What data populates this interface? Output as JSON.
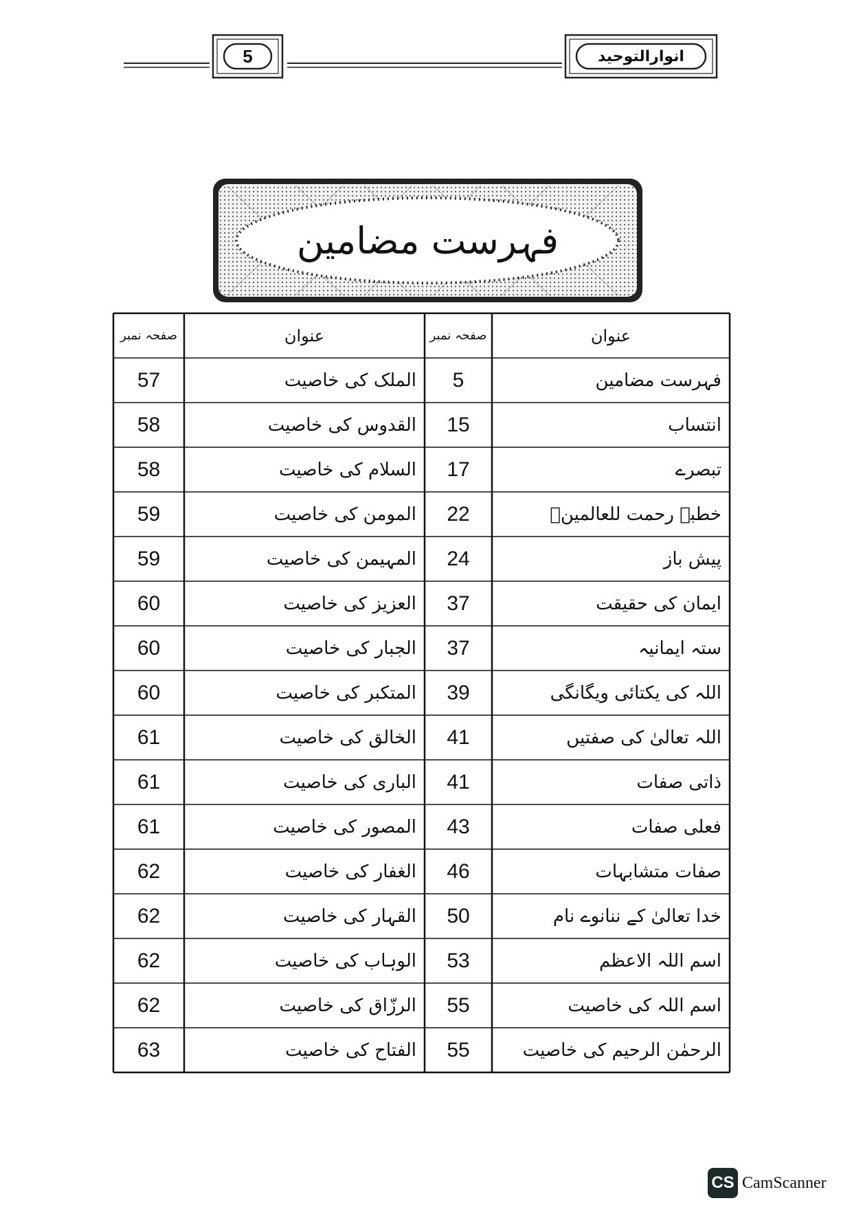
{
  "header": {
    "page_number": "5",
    "book_title": "انوارالتوحید"
  },
  "banner": {
    "title": "فہرست مضامین"
  },
  "table": {
    "header": [
      "عنوان",
      "صفحہ نمبر",
      "عنوان",
      "صفحہ نمبر"
    ],
    "rows": [
      [
        "فہرست مضامین",
        "5",
        "الملک کی خاصیت",
        "57"
      ],
      [
        "انتساب",
        "15",
        "القدوس کی خاصیت",
        "58"
      ],
      [
        "تبصرے",
        "17",
        "السلام کی خاصیت",
        "58"
      ],
      [
        "خطبہ رحمت للعالمینؐ",
        "22",
        "المومن کی خاصیت",
        "59"
      ],
      [
        "پیش باز",
        "24",
        "المہیمن کی خاصیت",
        "59"
      ],
      [
        "ایمان کی حقیقت",
        "37",
        "العزیز کی خاصیت",
        "60"
      ],
      [
        "ستہ ایمانیہ",
        "37",
        "الجبار کی خاصیت",
        "60"
      ],
      [
        "اللہ کی یکتائی ویگانگی",
        "39",
        "المتکبر کی خاصیت",
        "60"
      ],
      [
        "اللہ تعالیٰ کی صفتیں",
        "41",
        "الخالق کی خاصیت",
        "61"
      ],
      [
        "ذاتی صفات",
        "41",
        "الباری کی خاصیت",
        "61"
      ],
      [
        "فعلی صفات",
        "43",
        "المصور کی خاصیت",
        "61"
      ],
      [
        "صفات متشابہات",
        "46",
        "الغفار کی خاصیت",
        "62"
      ],
      [
        "خدا تعالیٰ کے ننانوے نام",
        "50",
        "القہار کی خاصیت",
        "62"
      ],
      [
        "اسم اللہ الاعظم",
        "53",
        "الوہاب کی خاصیت",
        "62"
      ],
      [
        "اسم اللہ کی خاصیت",
        "55",
        "الرزّاق کی خاصیت",
        "62"
      ],
      [
        "الرحمٰن الرحیم کی خاصیت",
        "55",
        "الفتاح کی خاصیت",
        "63"
      ]
    ]
  },
  "watermark": {
    "logo": "CS",
    "text": "CamScanner"
  }
}
